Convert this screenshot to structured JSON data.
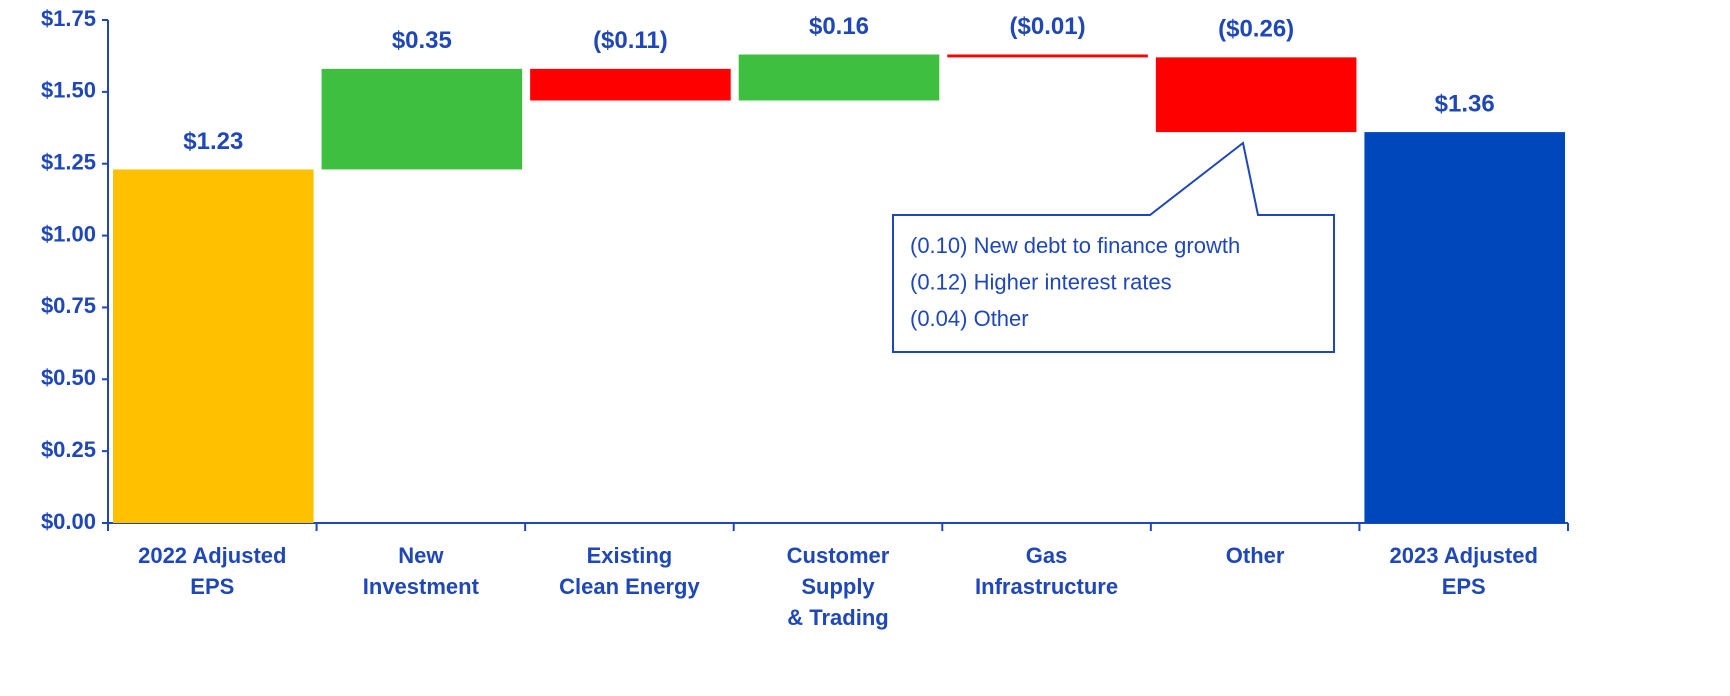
{
  "chart_data": {
    "type": "waterfall",
    "categories": [
      [
        "2022 Adjusted",
        "EPS"
      ],
      [
        "New",
        "Investment"
      ],
      [
        "Existing",
        "Clean Energy"
      ],
      [
        "Customer",
        "Supply",
        "& Trading"
      ],
      [
        "Gas",
        "Infrastructure"
      ],
      [
        "Other"
      ],
      [
        "2023 Adjusted",
        "EPS"
      ]
    ],
    "measure": [
      "absolute",
      "relative",
      "relative",
      "relative",
      "relative",
      "relative",
      "total"
    ],
    "values": [
      1.23,
      0.35,
      -0.11,
      0.16,
      -0.01,
      -0.26,
      1.36
    ],
    "value_labels": [
      "$1.23",
      "$0.35",
      "($0.11)",
      "$0.16",
      "($0.01)",
      "($0.26)",
      "$1.36"
    ],
    "colors": [
      "#ffc000",
      "#3fbf3f",
      "#ff0000",
      "#3fbf3f",
      "#ff0000",
      "#ff0000",
      "#0047bb"
    ],
    "ylim": [
      0,
      1.75
    ],
    "yticks": [
      {
        "value": 0,
        "label": "$0.00"
      },
      {
        "value": 0.25,
        "label": "$0.25"
      },
      {
        "value": 0.5,
        "label": "$0.50"
      },
      {
        "value": 0.75,
        "label": "$0.75"
      },
      {
        "value": 1,
        "label": "$1.00"
      },
      {
        "value": 1.25,
        "label": "$1.25"
      },
      {
        "value": 1.5,
        "label": "$1.50"
      },
      {
        "value": 1.75,
        "label": "$1.75"
      }
    ],
    "grid": false,
    "annotation": {
      "lines": [
        "(0.10) New debt to finance growth",
        "(0.12) Higher interest rates",
        "(0.04) Other"
      ]
    }
  }
}
